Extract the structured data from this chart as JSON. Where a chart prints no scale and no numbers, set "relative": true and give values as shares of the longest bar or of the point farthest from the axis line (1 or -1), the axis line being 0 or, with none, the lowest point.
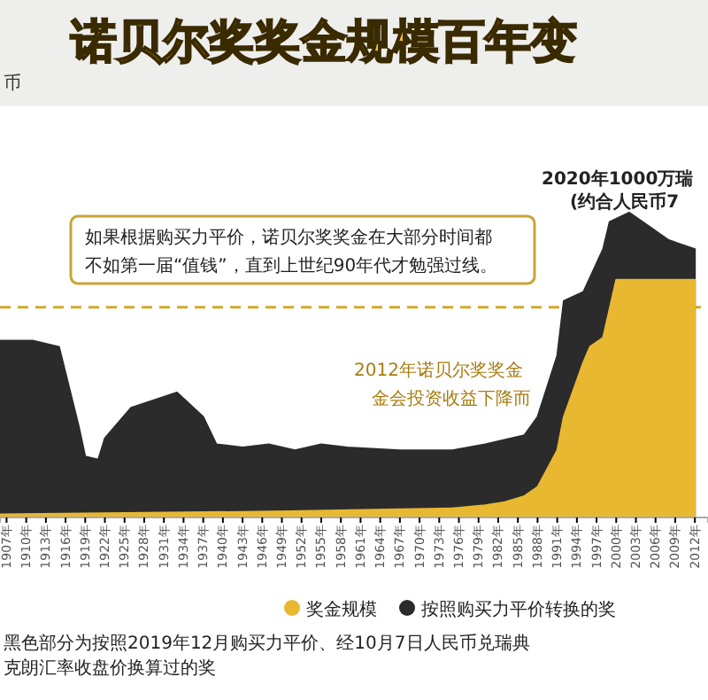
{
  "chart_data": {
    "type": "area",
    "title": "诺贝尔奖奖金规模百年变",
    "subtitle": "币",
    "relative": true,
    "xlim": [
      1906,
      2014
    ],
    "xticks": [
      {
        "value": 1907,
        "label": "1907年"
      },
      {
        "value": 1910,
        "label": "1910年"
      },
      {
        "value": 1913,
        "label": "1913年"
      },
      {
        "value": 1916,
        "label": "1916年"
      },
      {
        "value": 1919,
        "label": "1919年"
      },
      {
        "value": 1922,
        "label": "1922年"
      },
      {
        "value": 1925,
        "label": "1925年"
      },
      {
        "value": 1928,
        "label": "1928年"
      },
      {
        "value": 1931,
        "label": "1931年"
      },
      {
        "value": 1934,
        "label": "1934年"
      },
      {
        "value": 1937,
        "label": "1937年"
      },
      {
        "value": 1940,
        "label": "1940年"
      },
      {
        "value": 1943,
        "label": "1943年"
      },
      {
        "value": 1946,
        "label": "1946年"
      },
      {
        "value": 1949,
        "label": "1949年"
      },
      {
        "value": 1952,
        "label": "1952年"
      },
      {
        "value": 1955,
        "label": "1955年"
      },
      {
        "value": 1958,
        "label": "1958年"
      },
      {
        "value": 1961,
        "label": "1961年"
      },
      {
        "value": 1964,
        "label": "1964年"
      },
      {
        "value": 1967,
        "label": "1967年"
      },
      {
        "value": 1970,
        "label": "1970年"
      },
      {
        "value": 1973,
        "label": "1973年"
      },
      {
        "value": 1976,
        "label": "1976年"
      },
      {
        "value": 1979,
        "label": "1979年"
      },
      {
        "value": 1982,
        "label": "1982年"
      },
      {
        "value": 1985,
        "label": "1985年"
      },
      {
        "value": 1988,
        "label": "1988年"
      },
      {
        "value": 1991,
        "label": "1991年"
      },
      {
        "value": 1994,
        "label": "1994年"
      },
      {
        "value": 1997,
        "label": "1997年"
      },
      {
        "value": 2000,
        "label": "2000年"
      },
      {
        "value": 2003,
        "label": "2003年"
      },
      {
        "value": 2006,
        "label": "2006年"
      },
      {
        "value": 2009,
        "label": "2009年"
      },
      {
        "value": 2012,
        "label": "2012年"
      }
    ],
    "series": [
      {
        "name": "按照购买力平价转换的奖",
        "color": "#2b2b2b",
        "x": [
          1906,
          1911,
          1915,
          1918,
          1919,
          1921,
          1922,
          1926,
          1933,
          1937,
          1939,
          1943,
          1947,
          1951,
          1955,
          1959,
          1967,
          1975,
          1980,
          1986,
          1988,
          1991,
          1992,
          1995,
          1998,
          1999,
          2002,
          2004,
          2008,
          2012
        ],
        "values": [
          0.58,
          0.58,
          0.56,
          0.3,
          0.2,
          0.19,
          0.26,
          0.36,
          0.41,
          0.33,
          0.24,
          0.23,
          0.24,
          0.22,
          0.24,
          0.23,
          0.22,
          0.22,
          0.24,
          0.27,
          0.33,
          0.53,
          0.71,
          0.74,
          0.88,
          0.97,
          1,
          0.97,
          0.91,
          0.88
        ]
      },
      {
        "name": "奖金规模",
        "color": "#e8b830",
        "x": [
          1906,
          1950,
          1975,
          1980,
          1983,
          1986,
          1988,
          1991,
          1992,
          1995,
          1996,
          1998,
          2000,
          2001,
          2012
        ],
        "values": [
          0.01,
          0.02,
          0.03,
          0.04,
          0.05,
          0.07,
          0.1,
          0.22,
          0.33,
          0.51,
          0.56,
          0.59,
          0.78,
          0.78,
          0.78
        ]
      }
    ],
    "ref_lines": [
      {
        "axis": "y",
        "value": 0.69,
        "color": "#d4a92a",
        "line_style": "dashed"
      }
    ],
    "legend": "bottom",
    "annotations": [
      "如果根据购买力平价，诺贝尔奖奖金在大部分时间都",
      "不如第一届“值钱”，直到上世纪90年代才勉强过线。",
      "2020年1000万瑞",
      "(约合人民币7",
      "2012年诺贝尔奖奖金",
      "金会投资收益下降而",
      "黑色部分为按照2019年12月购买力平价、经10月7日人民币兑瑞典",
      "克朗汇率收盘价换算过的奖"
    ]
  }
}
